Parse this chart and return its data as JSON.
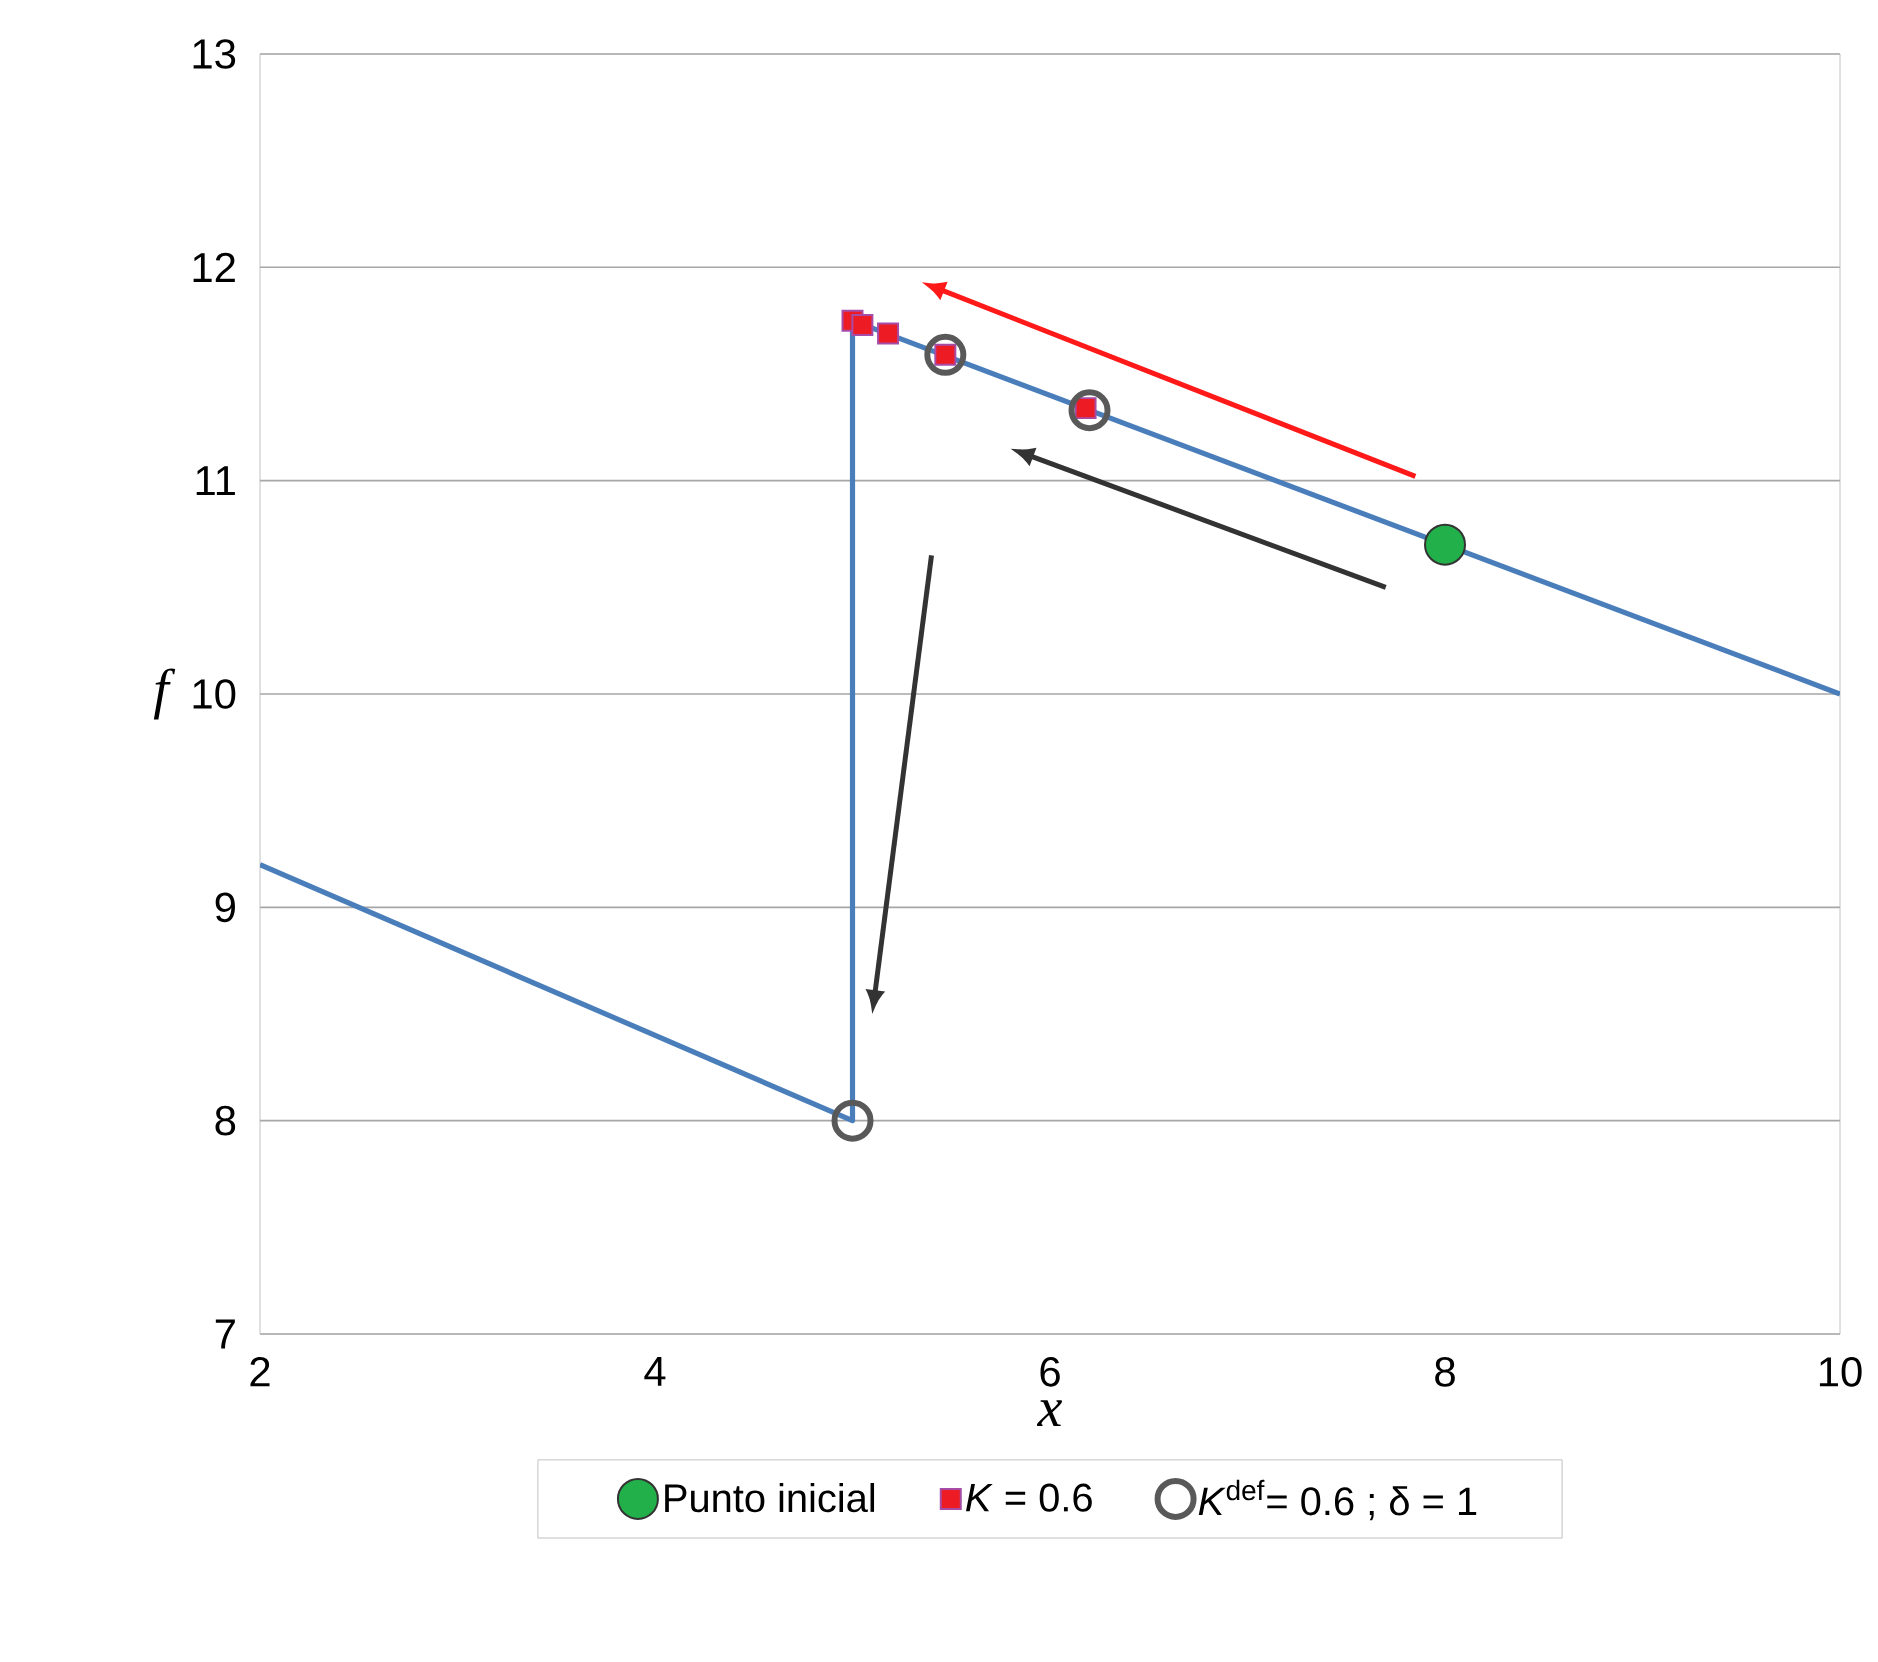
{
  "chart_data": {
    "type": "line",
    "xlabel": "x",
    "ylabel": "f",
    "xlim": [
      2,
      10
    ],
    "ylim": [
      7,
      13
    ],
    "xticks": [
      2,
      4,
      6,
      8,
      10
    ],
    "yticks": [
      7,
      8,
      9,
      10,
      11,
      12,
      13
    ],
    "grid": "y",
    "legend": "bottom",
    "series": [
      {
        "color": "#4a7ebb",
        "x": [
          2,
          5,
          5,
          10
        ],
        "values": [
          9.2,
          8,
          11.75,
          10
        ],
        "marker": "none"
      },
      {
        "type": "scatter",
        "name": "Punto inicial",
        "color": "#22b04a",
        "x": [
          8
        ],
        "values": [
          10.7
        ],
        "marker": "circle"
      },
      {
        "type": "scatter",
        "name": "*K* = 0.6",
        "color": "#ed1c24",
        "x": [
          5.0,
          5.05,
          5.18,
          5.47,
          6.18
        ],
        "values": [
          11.75,
          11.73,
          11.69,
          11.59,
          11.34
        ],
        "marker": "square"
      },
      {
        "type": "scatter",
        "name": "*K*$^{def}$= 0.6 ; δ = 1",
        "color": "#595959",
        "x": [
          5.47,
          6.2,
          5
        ],
        "values": [
          11.59,
          11.33,
          8
        ],
        "marker": "circle"
      }
    ]
  }
}
